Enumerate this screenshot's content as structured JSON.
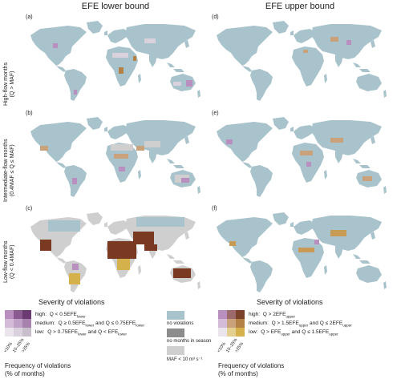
{
  "columns": [
    {
      "title": "EFE lower bound"
    },
    {
      "title": "EFE upper bound"
    }
  ],
  "rows": [
    {
      "line1": "High-flow months",
      "line2": "(Q > MAF)"
    },
    {
      "line1": "Intermediate-flow months",
      "line2": "(0.4MAF ≤ Q ≤ MAF)"
    },
    {
      "line1": "Low-flow months",
      "line2": "(Q < 0.4MAF)"
    }
  ],
  "panels": [
    "(a)",
    "(b)",
    "(c)",
    "(d)",
    "(e)",
    "(f)"
  ],
  "legend_left": {
    "severity_title": "Severity of violations",
    "rows": [
      {
        "level": "high:",
        "cond_pre": "Q < 0.5EFE",
        "sub": "lower",
        "cond_post": "",
        "sub2": ""
      },
      {
        "level": "medium:",
        "cond_pre": "Q ≥ 0.5EFE",
        "sub": "lower",
        "cond_post": " and Q ≤ 0.75EFE",
        "sub2": "lower"
      },
      {
        "level": "low:",
        "cond_pre": "Q > 0.75EFE",
        "sub": "lower",
        "cond_post": " and Q < EFE",
        "sub2": "lower"
      }
    ],
    "freq_labels": [
      "<10%",
      "10–25%",
      ">25%"
    ],
    "freq_title_1": "Frequency of violations",
    "freq_title_2": "(% of months)"
  },
  "legend_right": {
    "severity_title": "Severity of violations",
    "rows": [
      {
        "level": "high:",
        "cond_pre": "Q > 2EFE",
        "sub": "upper",
        "cond_post": "",
        "sub2": ""
      },
      {
        "level": "medium:",
        "cond_pre": "Q > 1.5EFE",
        "sub": "upper",
        "cond_post": " and Q ≤ 2EFE",
        "sub2": "upper"
      },
      {
        "level": "low:",
        "cond_pre": "Q > EFE",
        "sub": "upper",
        "cond_post": " and Q ≤ 1.5EFE",
        "sub2": "upper"
      }
    ],
    "freq_labels": [
      "<10%",
      "10–25%",
      ">25%"
    ],
    "freq_title_1": "Frequency of violations",
    "freq_title_2": "(% of months)"
  },
  "other_legend": {
    "no_violations": "no violations",
    "no_months": "no months in season",
    "maf_low": "MAF < 10 m³ s⁻¹"
  },
  "colors": {
    "no_violation": "#a9c3cc",
    "no_months": "#8c8c8c",
    "maf_low": "#cfcfcf",
    "lower_grid": [
      [
        "#b88fbf",
        "#8b5a91",
        "#6b3a72"
      ],
      [
        "#d4bcd8",
        "#c0a0c6",
        "#a882ae"
      ],
      [
        "#ebe4ec",
        "#d9d2dc",
        "#c9bfcc"
      ]
    ],
    "upper_grid": [
      [
        "#b88fbf",
        "#9c6a6a",
        "#7a4228"
      ],
      [
        "#d4bcd8",
        "#c9a27c",
        "#b38145"
      ],
      [
        "#ebe4ec",
        "#e3cf8f",
        "#d4b14a"
      ]
    ],
    "lower_low_flow": "#7a3a22",
    "upper_low_flow": "#c79a55"
  }
}
